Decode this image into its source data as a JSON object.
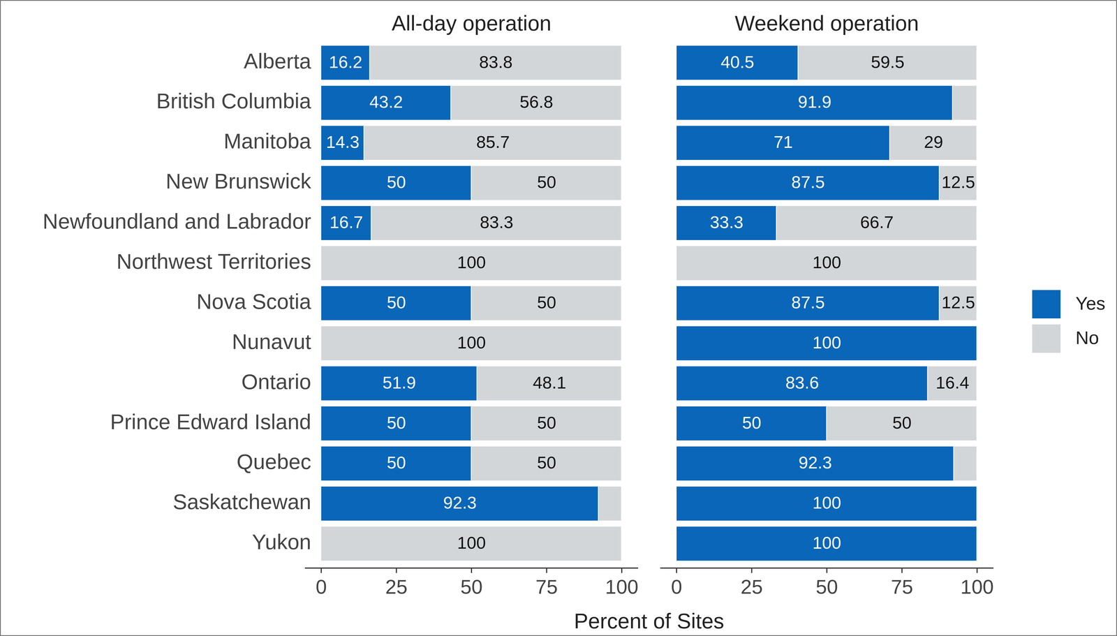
{
  "chart_data": [
    {
      "type": "bar",
      "title": "All-day operation",
      "x_label": "Percent of Sites",
      "orientation": "horizontal",
      "stacked": true,
      "data_labels": true,
      "categories": [
        "Alberta",
        "British Columbia",
        "Manitoba",
        "New Brunswick",
        "Newfoundland and Labrador",
        "Northwest Territories",
        "Nova Scotia",
        "Nunavut",
        "Ontario",
        "Prince Edward Island",
        "Quebec",
        "Saskatchewan",
        "Yukon"
      ],
      "xlim": [
        0,
        100
      ],
      "xticks": [
        0,
        25,
        50,
        75,
        100
      ],
      "series": [
        {
          "name": "Yes",
          "color": "#0a66b8",
          "values": [
            16.2,
            43.2,
            14.3,
            50,
            16.7,
            0,
            50,
            0,
            51.9,
            50,
            50,
            92.3,
            0
          ],
          "value_labels": [
            "16.2",
            "43.2",
            "14.3",
            "50",
            "16.7",
            null,
            "50",
            null,
            "51.9",
            "50",
            "50",
            "92.3",
            null
          ]
        },
        {
          "name": "No",
          "color": "#d3d6d8",
          "values": [
            83.8,
            56.8,
            85.7,
            50,
            83.3,
            100,
            50,
            100,
            48.1,
            50,
            50,
            7.7,
            100
          ],
          "value_labels": [
            "83.8",
            "56.8",
            "85.7",
            "50",
            "83.3",
            "100",
            "50",
            "100",
            "48.1",
            "50",
            "50",
            null,
            "100"
          ]
        }
      ]
    },
    {
      "type": "bar",
      "title": "Weekend operation",
      "orientation": "horizontal",
      "stacked": true,
      "data_labels": true,
      "tick_labels": "x",
      "legend": "right",
      "categories": [
        "Alberta",
        "British Columbia",
        "Manitoba",
        "New Brunswick",
        "Newfoundland and Labrador",
        "Northwest Territories",
        "Nova Scotia",
        "Nunavut",
        "Ontario",
        "Prince Edward Island",
        "Quebec",
        "Saskatchewan",
        "Yukon"
      ],
      "xlim": [
        0,
        100
      ],
      "xticks": [
        0,
        25,
        50,
        75,
        100
      ],
      "series": [
        {
          "name": "Yes",
          "color": "#0a66b8",
          "values": [
            40.5,
            91.9,
            71,
            87.5,
            33.3,
            0,
            87.5,
            100,
            83.6,
            50,
            92.3,
            100,
            100
          ],
          "value_labels": [
            "40.5",
            "91.9",
            "71",
            "87.5",
            "33.3",
            null,
            "87.5",
            "100",
            "83.6",
            "50",
            "92.3",
            "100",
            "100"
          ]
        },
        {
          "name": "No",
          "color": "#d3d6d8",
          "values": [
            59.5,
            8.1,
            29,
            12.5,
            66.7,
            100,
            12.5,
            0,
            16.4,
            50,
            7.7,
            0,
            0
          ],
          "value_labels": [
            "59.5",
            null,
            "29",
            "12.5",
            "66.7",
            "100",
            "12.5",
            null,
            "16.4",
            "50",
            null,
            null,
            null
          ]
        }
      ]
    }
  ]
}
